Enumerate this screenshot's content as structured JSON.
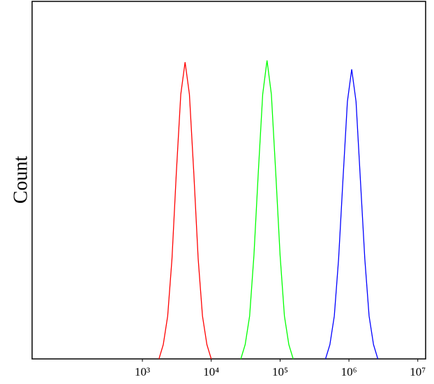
{
  "chart_data": {
    "type": "line",
    "ylabel": "Count",
    "xscale": "log",
    "xlim": [
      25,
      13000000
    ],
    "ylim": [
      0,
      100
    ],
    "xticks": [
      {
        "value": 1000,
        "label": "10³"
      },
      {
        "value": 10000,
        "label": "10⁴"
      },
      {
        "value": 100000,
        "label": "10⁵"
      },
      {
        "value": 1000000,
        "label": "10⁶"
      },
      {
        "value": 10000000,
        "label": "10⁷"
      }
    ],
    "grid": false,
    "series": [
      {
        "color": "#ff0000",
        "x": [
          1740,
          2010,
          2330,
          2690,
          3110,
          3610,
          4170,
          4820,
          5580,
          6460,
          7460,
          8650,
          10000
        ],
        "values": [
          0,
          4,
          12,
          28,
          52,
          74,
          83,
          74,
          52,
          28,
          12,
          4,
          0
        ]
      },
      {
        "color": "#00ff00",
        "x": [
          26900,
          31100,
          36100,
          41700,
          48200,
          55900,
          64600,
          74700,
          86500,
          100000,
          115600,
          134000,
          155000
        ],
        "values": [
          0,
          4,
          12,
          29,
          52,
          74,
          83.5,
          74,
          52,
          29,
          12,
          4,
          0
        ]
      },
      {
        "color": "#0000ff",
        "x": [
          457000,
          529000,
          613000,
          708000,
          818000,
          950000,
          1097000,
          1268000,
          1468000,
          1700000,
          1962000,
          2275000,
          2630000
        ],
        "values": [
          0,
          4,
          12,
          28,
          50,
          72,
          81,
          72,
          50,
          28,
          12,
          4,
          0
        ]
      }
    ]
  }
}
